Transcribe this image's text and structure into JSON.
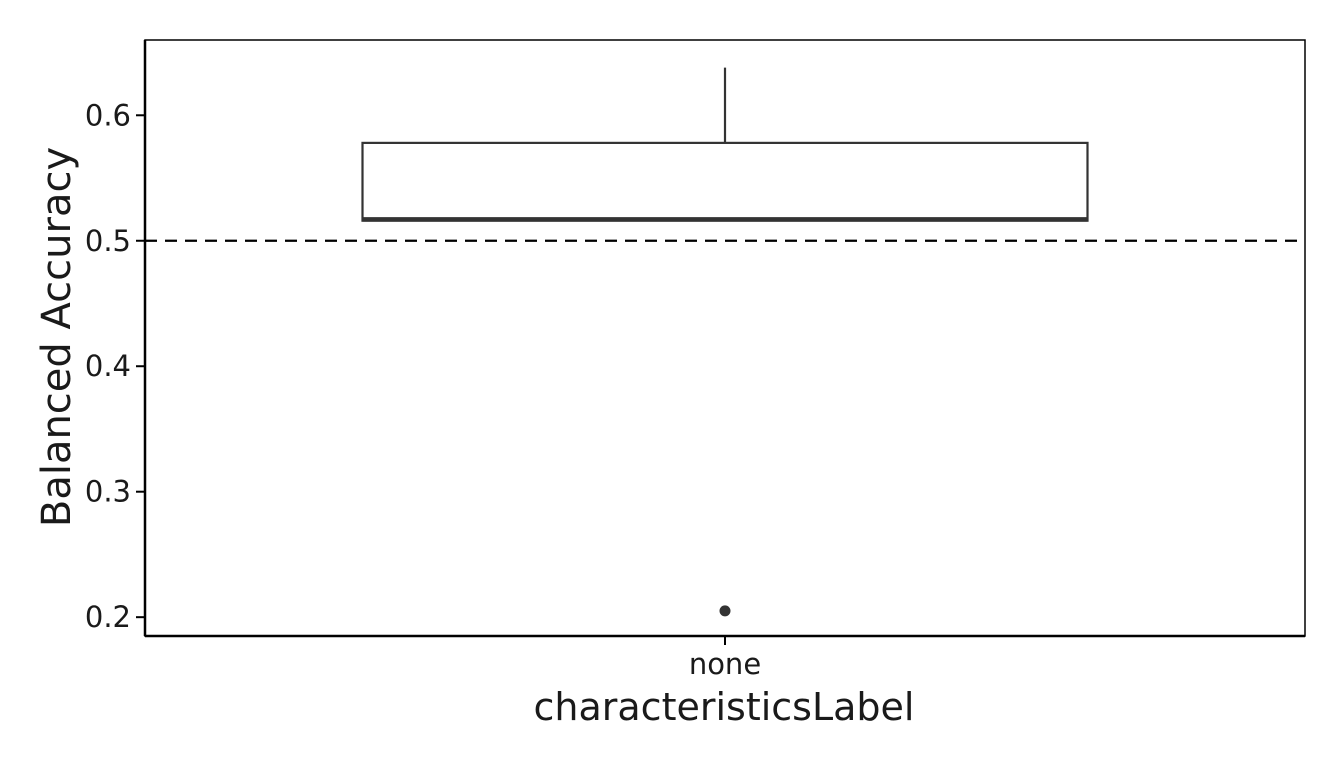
{
  "chart_data": {
    "type": "box",
    "title": "",
    "xlabel": "characteristicsLabel",
    "ylabel": "Balanced Accuracy",
    "categories": [
      "none"
    ],
    "ylim": [
      0.185,
      0.66
    ],
    "yticks": [
      0.2,
      0.3,
      0.4,
      0.5,
      0.6
    ],
    "ytick_labels": [
      "0.2",
      "0.3",
      "0.4",
      "0.5",
      "0.6"
    ],
    "grid": false,
    "legend": "none",
    "reference_line": {
      "y": 0.5,
      "style": "dashed"
    },
    "boxes": [
      {
        "category": "none",
        "whisker_low": 0.516,
        "q1": 0.516,
        "median": 0.517,
        "q3": 0.578,
        "whisker_high": 0.638,
        "outliers": [
          0.205
        ]
      }
    ],
    "colors": {
      "box_stroke": "#333333",
      "box_fill": "#ffffff",
      "outlier": "#333333",
      "axis": "#000000",
      "reference_line": "#000000"
    }
  }
}
